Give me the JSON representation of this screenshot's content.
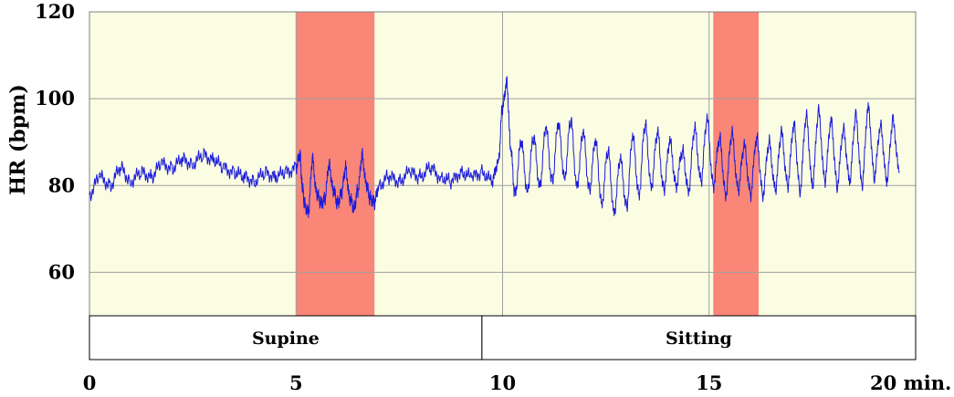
{
  "chart_data": {
    "type": "line",
    "title": "",
    "ylabel": "HR (bpm)",
    "xlabel": "",
    "ylim": [
      50,
      120
    ],
    "xlim": [
      0,
      20
    ],
    "y_ticks": [
      "60",
      "80",
      "100",
      "120"
    ],
    "x_ticks": [
      "0",
      "5",
      "10",
      "15",
      "20 min."
    ],
    "x_tick_values": [
      0,
      5,
      10,
      15,
      20
    ],
    "grid": true,
    "colors": {
      "background": "#fbfde2",
      "highlight": "#fa8072",
      "line": "#1a1adb",
      "grid": "#a0a0a0"
    },
    "highlight_regions": [
      [
        5.0,
        6.9
      ],
      [
        15.1,
        16.2
      ]
    ],
    "phases": [
      {
        "label": "Supine",
        "start": 0,
        "end": 9.5
      },
      {
        "label": "Sitting",
        "start": 9.5,
        "end": 20
      }
    ],
    "series": [
      {
        "x": [
          0.0,
          0.25,
          0.5,
          0.75,
          1.0,
          1.25,
          1.5,
          1.75,
          2.0,
          2.25,
          2.5,
          2.75,
          3.0,
          3.25,
          3.5,
          3.75,
          4.0,
          4.25,
          4.5,
          4.75,
          5.0,
          5.1,
          5.15,
          5.2,
          5.3,
          5.4,
          5.5,
          5.6,
          5.7,
          5.8,
          5.9,
          6.0,
          6.1,
          6.2,
          6.3,
          6.4,
          6.5,
          6.6,
          6.7,
          6.8,
          6.9,
          7.0,
          7.25,
          7.5,
          7.75,
          8.0,
          8.25,
          8.5,
          8.75,
          9.0,
          9.25,
          9.5,
          9.75,
          9.9,
          10.0,
          10.1,
          10.2,
          10.3,
          10.45,
          10.6,
          10.75,
          10.9,
          11.05,
          11.2,
          11.35,
          11.5,
          11.65,
          11.8,
          11.95,
          12.1,
          12.25,
          12.4,
          12.55,
          12.7,
          12.85,
          13.0,
          13.15,
          13.3,
          13.45,
          13.6,
          13.75,
          13.9,
          14.05,
          14.2,
          14.35,
          14.5,
          14.65,
          14.8,
          14.95,
          15.1,
          15.25,
          15.4,
          15.55,
          15.7,
          15.85,
          16.0,
          16.15,
          16.3,
          16.45,
          16.6,
          16.75,
          16.9,
          17.05,
          17.2,
          17.35,
          17.5,
          17.65,
          17.8,
          17.95,
          18.1,
          18.25,
          18.4,
          18.55,
          18.7,
          18.85,
          19.0,
          19.15,
          19.3,
          19.45,
          19.6
        ],
        "y": [
          78,
          82,
          80,
          84,
          81,
          83,
          82,
          85,
          84,
          86,
          85,
          87,
          86,
          84,
          83,
          82,
          81,
          83,
          82,
          83,
          84,
          87,
          80,
          76,
          74,
          86,
          78,
          76,
          77,
          85,
          79,
          76,
          78,
          84,
          77,
          75,
          79,
          87,
          80,
          77,
          76,
          80,
          82,
          81,
          83,
          82,
          84,
          82,
          81,
          83,
          82,
          83,
          81,
          86,
          98,
          104,
          88,
          78,
          90,
          79,
          91,
          80,
          93,
          81,
          94,
          82,
          95,
          80,
          92,
          79,
          90,
          76,
          88,
          74,
          86,
          75,
          91,
          78,
          94,
          80,
          92,
          79,
          90,
          80,
          88,
          79,
          93,
          81,
          95,
          80,
          91,
          78,
          92,
          79,
          89,
          78,
          91,
          78,
          90,
          79,
          92,
          80,
          94,
          79,
          96,
          80,
          97,
          81,
          95,
          80,
          93,
          81,
          96,
          80,
          98,
          82,
          94,
          81,
          95,
          83
        ]
      }
    ]
  }
}
